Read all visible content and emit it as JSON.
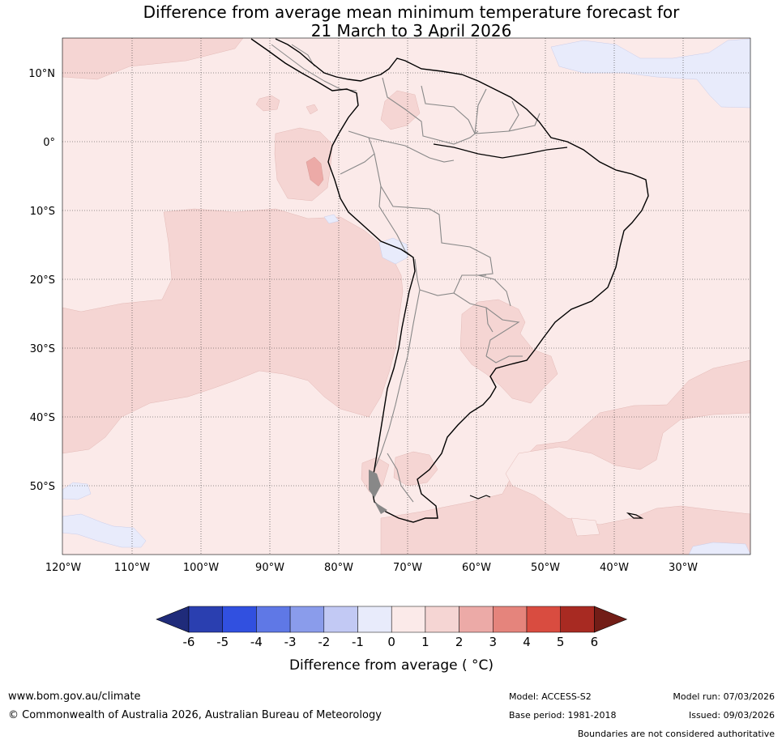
{
  "title_line1": "Difference from average mean minimum temperature forecast for",
  "title_line2": "21 March to 3 April 2026",
  "lat_labels": [
    "10°N",
    "0°",
    "10°S",
    "20°S",
    "30°S",
    "40°S",
    "50°S"
  ],
  "lon_labels": [
    "120°W",
    "110°W",
    "100°W",
    "90°W",
    "80°W",
    "70°W",
    "60°W",
    "50°W",
    "40°W",
    "30°W"
  ],
  "colorbar": {
    "ticks": [
      "-6",
      "-5",
      "-4",
      "-3",
      "-2",
      "-1",
      "0",
      "1",
      "2",
      "3",
      "4",
      "5",
      "6"
    ],
    "colors": [
      "#1f2b7a",
      "#2a3fb0",
      "#3150e0",
      "#5f78e6",
      "#8a9ceb",
      "#c2c9f4",
      "#e8ebfb",
      "#fbeae9",
      "#f5d5d3",
      "#ecaaa7",
      "#e5847c",
      "#d94c40",
      "#a82a22",
      "#721d17"
    ],
    "label": "Difference from average ( °C)"
  },
  "footer": {
    "website": "www.bom.gov.au/climate",
    "copyright": "© Commonwealth of Australia 2026, Australian Bureau of Meteorology",
    "model": "Model: ACCESS-S2",
    "base_period": "Base period: 1981-2018",
    "model_run": "Model run: 07/03/2026",
    "issued": "Issued: 09/03/2026",
    "disclaimer": "Boundaries are not considered authoritative"
  }
}
